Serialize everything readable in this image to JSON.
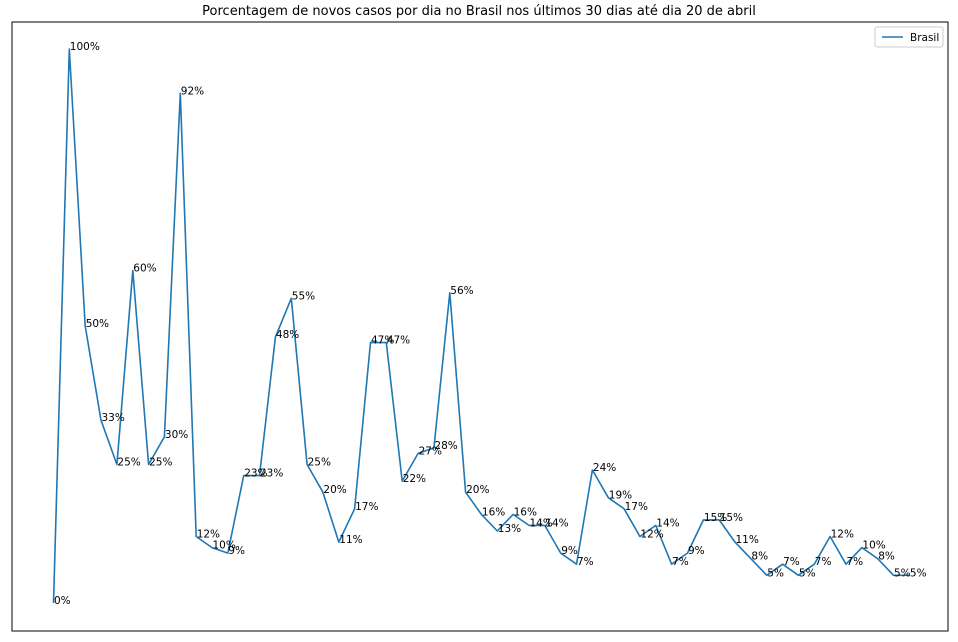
{
  "chart_data": {
    "type": "line",
    "title": "Porcentagem de novos casos por dia no Brasil nos últimos 30 dias até dia 20 de abril",
    "xlabel": "",
    "ylabel": "",
    "grid": false,
    "legend_position": "top-right",
    "series": [
      {
        "name": "Brasil",
        "color": "#1f77b4",
        "values": [
          0,
          100,
          50,
          33,
          25,
          60,
          25,
          30,
          92,
          12,
          10,
          9,
          23,
          23,
          48,
          55,
          25,
          20,
          11,
          17,
          47,
          47,
          22,
          27,
          28,
          56,
          20,
          16,
          13,
          16,
          14,
          14,
          9,
          7,
          24,
          19,
          17,
          12,
          14,
          7,
          9,
          15,
          15,
          11,
          8,
          5,
          7,
          5,
          7,
          12,
          7,
          10,
          8,
          5,
          5
        ],
        "labels": [
          "0%",
          "100%",
          "50%",
          "33%",
          "25%",
          "60%",
          "25%",
          "30%",
          "92%",
          "12%",
          "10%",
          "9%",
          "23%",
          "23%",
          "48%",
          "55%",
          "25%",
          "20%",
          "11%",
          "17%",
          "47%",
          "47%",
          "22%",
          "27%",
          "28%",
          "56%",
          "20%",
          "16%",
          "13%",
          "16%",
          "14%",
          "14%",
          "9%",
          "7%",
          "24%",
          "19%",
          "17%",
          "12%",
          "14%",
          "7%",
          "9%",
          "15%",
          "15%",
          "11%",
          "8%",
          "5%",
          "7%",
          "5%",
          "7%",
          "12%",
          "7%",
          "10%",
          "8%",
          "5%",
          "5%"
        ]
      }
    ]
  }
}
